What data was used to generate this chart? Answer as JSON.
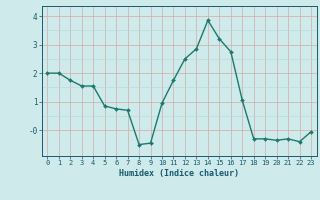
{
  "x": [
    0,
    1,
    2,
    3,
    4,
    5,
    6,
    7,
    8,
    9,
    10,
    11,
    12,
    13,
    14,
    15,
    16,
    17,
    18,
    19,
    20,
    21,
    22,
    23
  ],
  "y": [
    2.0,
    2.0,
    1.75,
    1.55,
    1.55,
    0.85,
    0.75,
    0.7,
    -0.5,
    -0.45,
    0.95,
    1.75,
    2.5,
    2.85,
    3.85,
    3.2,
    2.75,
    1.05,
    -0.3,
    -0.3,
    -0.35,
    -0.3,
    -0.4,
    -0.05
  ],
  "line_color": "#1a7a6e",
  "marker": "D",
  "marker_size": 2.0,
  "bg_color": "#ceeaea",
  "grid_color_pink": "#d4aaaa",
  "grid_color_teal": "#b8d8d8",
  "xlabel": "Humidex (Indice chaleur)",
  "xlim": [
    -0.5,
    23.5
  ],
  "ylim": [
    -0.9,
    4.35
  ],
  "yticks": [
    0,
    1,
    2,
    3,
    4
  ],
  "ytick_labels": [
    "-0",
    "1",
    "2",
    "3",
    "4"
  ],
  "xticks": [
    0,
    1,
    2,
    3,
    4,
    5,
    6,
    7,
    8,
    9,
    10,
    11,
    12,
    13,
    14,
    15,
    16,
    17,
    18,
    19,
    20,
    21,
    22,
    23
  ],
  "font_color": "#1a5a6e",
  "axis_color": "#1a5a6e"
}
